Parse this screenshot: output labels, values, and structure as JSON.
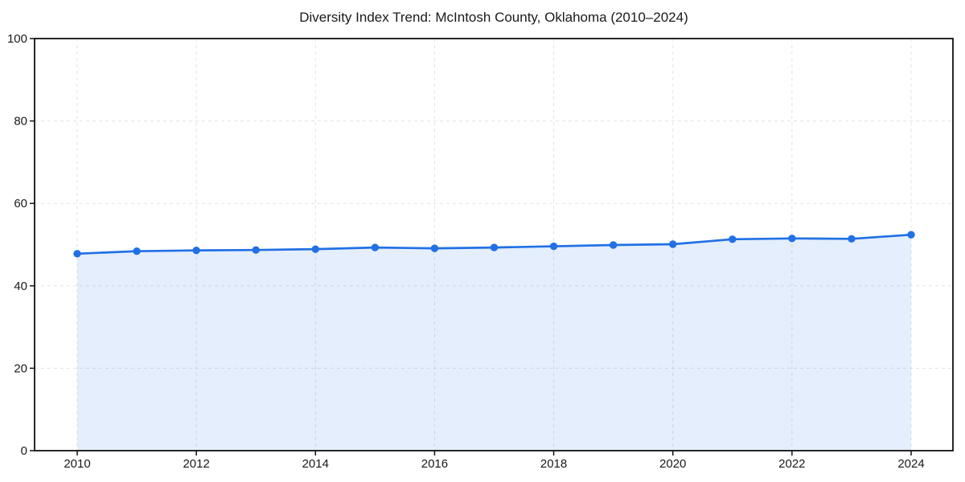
{
  "chart_data": {
    "type": "area",
    "title": "Diversity Index Trend: McIntosh County, Oklahoma (2010–2024)",
    "x": [
      2010,
      2011,
      2012,
      2013,
      2014,
      2015,
      2016,
      2017,
      2018,
      2019,
      2020,
      2021,
      2022,
      2023,
      2024
    ],
    "values": [
      47.8,
      48.4,
      48.6,
      48.7,
      48.9,
      49.3,
      49.1,
      49.3,
      49.6,
      49.9,
      50.1,
      51.3,
      51.5,
      51.4,
      52.4
    ],
    "xlabel": "",
    "ylabel": "",
    "ylim": [
      0,
      100
    ],
    "yticks": [
      0,
      20,
      40,
      60,
      80,
      100
    ],
    "ytick_labels": [
      "0",
      "20",
      "40",
      "60",
      "80",
      "100"
    ],
    "xticks": [
      2010,
      2012,
      2014,
      2016,
      2018,
      2020,
      2022,
      2024
    ],
    "xtick_labels": [
      "2010",
      "2012",
      "2014",
      "2016",
      "2018",
      "2020",
      "2022",
      "2024"
    ],
    "grid": "dashed",
    "legend": "none",
    "colors": {
      "line": "#2170e4",
      "fill": "#2170e4",
      "fill_opacity": 0.12,
      "grid": "#e3e3e3",
      "axis": "#111111",
      "tick_text": "#1a1a1a",
      "background": "#ffffff"
    }
  }
}
